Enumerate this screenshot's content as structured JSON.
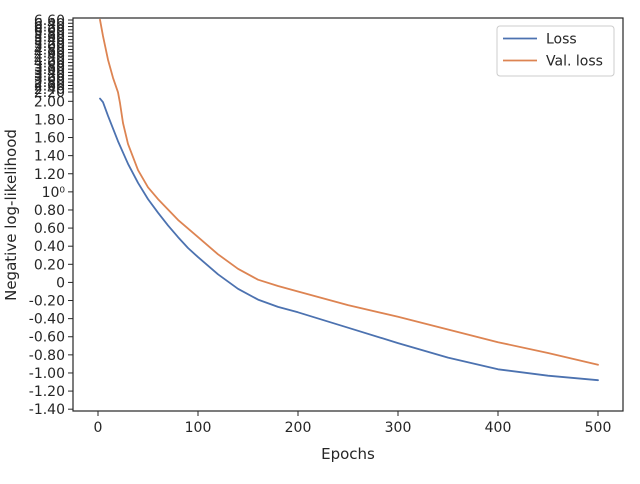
{
  "chart_data": {
    "type": "line",
    "xlabel": "Epochs",
    "ylabel": "Negative log-likelihood",
    "xlim": [
      -25,
      525
    ],
    "ylim": [
      -1.42,
      2.92
    ],
    "x_ticks": [
      0,
      100,
      200,
      300,
      400,
      500
    ],
    "x_tick_labels": [
      "0",
      "100",
      "200",
      "300",
      "400",
      "500"
    ],
    "y_ticks": [
      -1.4,
      -1.2,
      -1.0,
      -0.8,
      -0.6,
      -0.4,
      -0.2,
      0,
      0.2,
      0.4,
      0.6,
      0.8,
      1.0,
      1.2,
      1.4,
      1.6,
      1.8,
      2.0
    ],
    "y_tick_labels": [
      "-1.40",
      "-1.20",
      "-1.00",
      "-0.80",
      "-0.60",
      "-0.40",
      "-0.20",
      "0",
      "0.20",
      "0.40",
      "0.60",
      "0.80",
      "10⁰",
      "1.20",
      "1.40",
      "1.60",
      "1.80",
      "2.00"
    ],
    "y_tick_labels_overlapping_top": [
      "2.20",
      "2.40",
      "2.60",
      "2.80",
      "3.00",
      "3.20",
      "3.40",
      "3.60",
      "3.80",
      "4.00",
      "4.20",
      "4.40",
      "4.60",
      "4.80",
      "5.00",
      "5.20",
      "5.40",
      "5.60",
      "5.80",
      "6.00",
      "6.20",
      "6.40",
      "6.60"
    ],
    "grid": false,
    "legend_position": "top-right",
    "series": [
      {
        "name": "Loss",
        "color": "#4c72b0",
        "x": [
          2,
          5,
          10,
          20,
          30,
          40,
          50,
          60,
          70,
          80,
          90,
          100,
          120,
          140,
          160,
          180,
          200,
          250,
          300,
          350,
          400,
          450,
          500
        ],
        "y": [
          2.03,
          1.99,
          1.84,
          1.56,
          1.31,
          1.1,
          0.92,
          0.77,
          0.63,
          0.5,
          0.38,
          0.28,
          0.09,
          -0.07,
          -0.19,
          -0.27,
          -0.33,
          -0.5,
          -0.67,
          -0.83,
          -0.96,
          -1.03,
          -1.08
        ]
      },
      {
        "name": "Val. loss",
        "color": "#dd8452",
        "x": [
          2,
          5,
          10,
          15,
          20,
          22,
          25,
          30,
          40,
          50,
          60,
          80,
          100,
          120,
          140,
          160,
          180,
          200,
          250,
          300,
          350,
          400,
          450,
          500
        ],
        "y": [
          2.9,
          2.72,
          2.46,
          2.26,
          2.1,
          1.98,
          1.76,
          1.53,
          1.24,
          1.05,
          0.92,
          0.69,
          0.5,
          0.31,
          0.15,
          0.03,
          -0.04,
          -0.1,
          -0.25,
          -0.38,
          -0.52,
          -0.66,
          -0.78,
          -0.91
        ]
      }
    ]
  }
}
